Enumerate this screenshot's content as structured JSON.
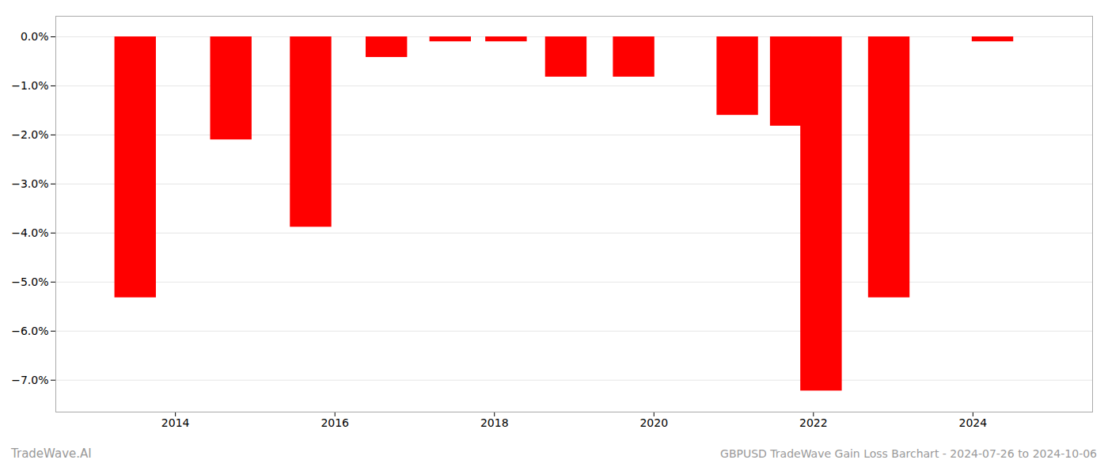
{
  "chart_data": {
    "type": "bar",
    "title": "GBPUSD TradeWave Gain Loss Barchart - 2024-07-26 to 2024-10-06",
    "annotations": [
      "TradeWave.AI"
    ],
    "x": [
      2013.5,
      2014.7,
      2015.7,
      2016.65,
      2017.45,
      2018.15,
      2018.9,
      2019.75,
      2021.05,
      2021.72,
      2022.1,
      2022.95,
      2024.25
    ],
    "values": [
      -5.32,
      -2.1,
      -3.88,
      -0.42,
      -0.1,
      -0.1,
      -0.82,
      -0.82,
      -1.6,
      -1.82,
      -7.22,
      -5.32,
      -0.1
    ],
    "color": "#ff0000",
    "xlim": [
      2012.5,
      2025.5
    ],
    "xticks": [
      2014,
      2016,
      2018,
      2020,
      2022,
      2024
    ],
    "ylim": [
      -7.65,
      0.42
    ],
    "yticks": [
      {
        "value": 0.0,
        "label": "0.0%"
      },
      {
        "value": -1.0,
        "label": "−1.0%"
      },
      {
        "value": -2.0,
        "label": "−2.0%"
      },
      {
        "value": -3.0,
        "label": "−3.0%"
      },
      {
        "value": -4.0,
        "label": "−4.0%"
      },
      {
        "value": -5.0,
        "label": "−5.0%"
      },
      {
        "value": -6.0,
        "label": "−6.0%"
      },
      {
        "value": -7.0,
        "label": "−7.0%"
      }
    ],
    "grid": true
  }
}
